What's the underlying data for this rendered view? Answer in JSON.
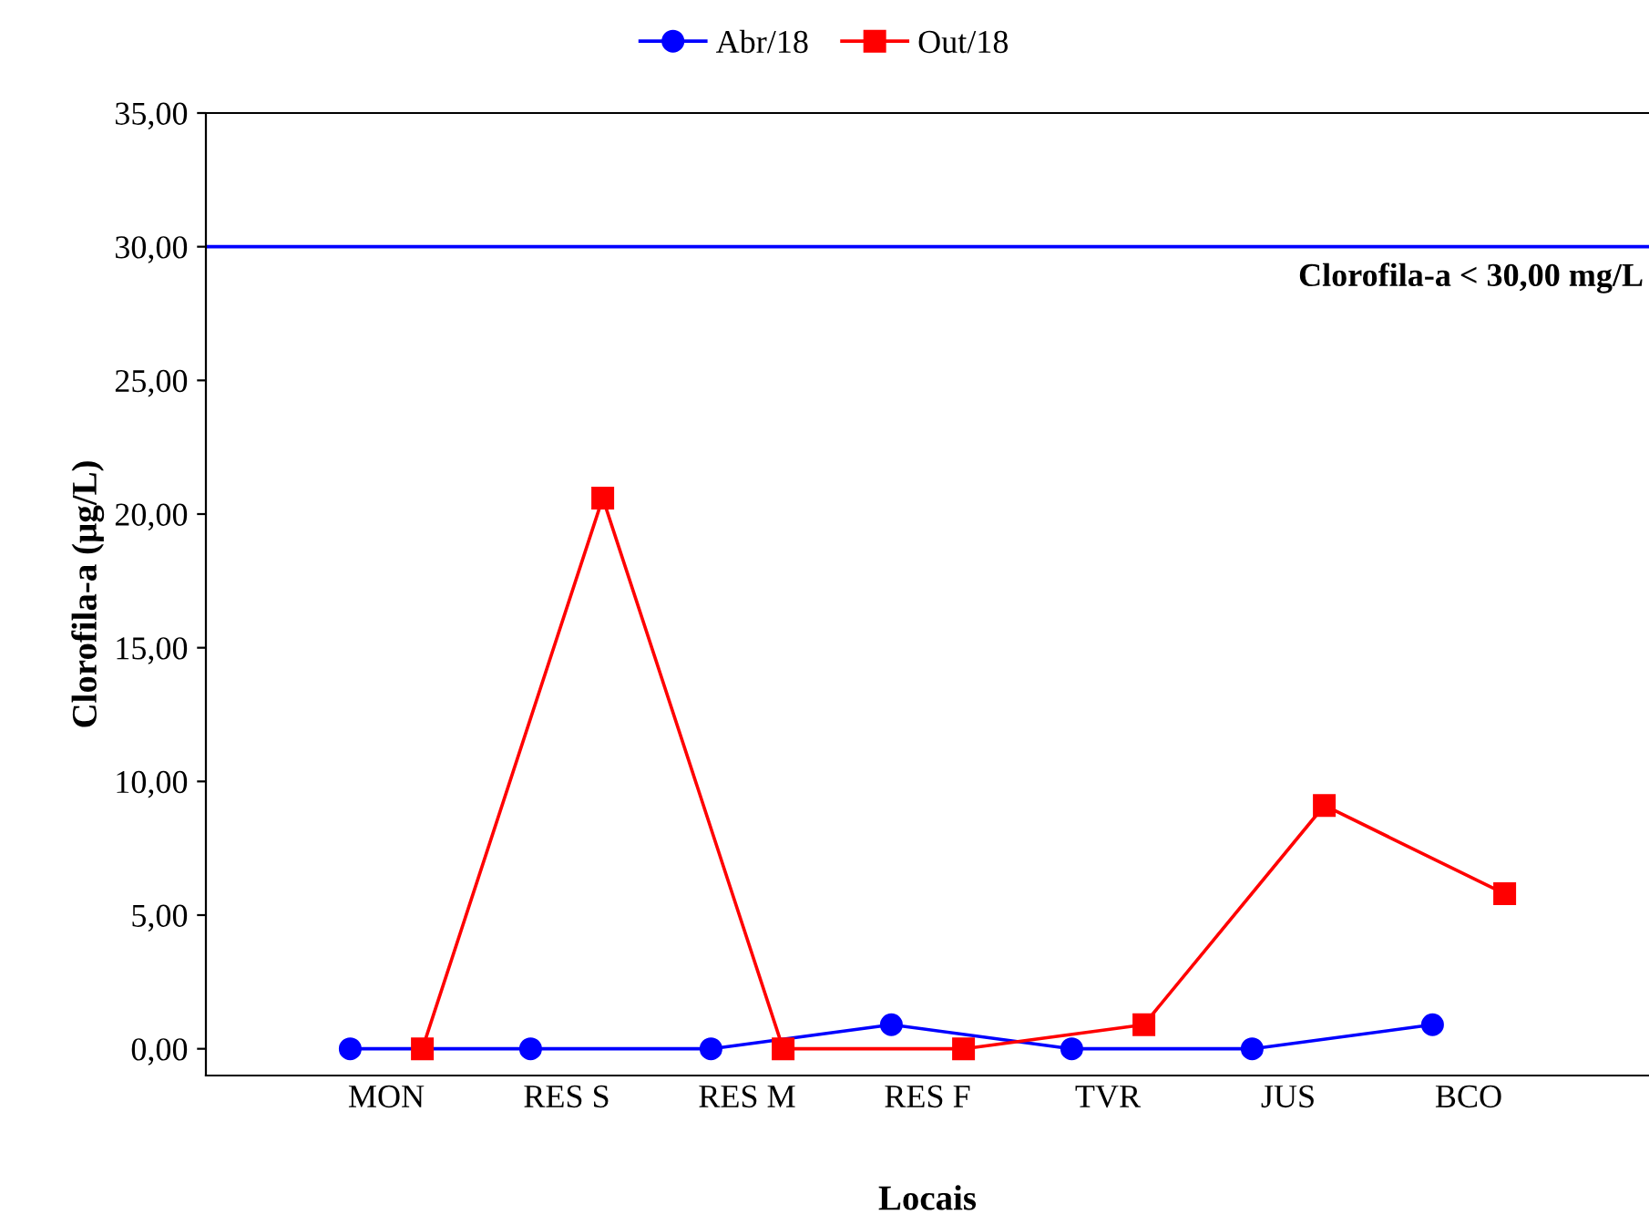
{
  "chart_data": {
    "type": "line",
    "categories": [
      "MON",
      "RES S",
      "RES M",
      "RES F",
      "TVR",
      "JUS",
      "BCO"
    ],
    "xlabel": "Locais",
    "ylabel": "Clorofila-a (µg/L)",
    "ylim": [
      -1,
      35
    ],
    "yticks": [
      {
        "value": 0,
        "label": "0,00"
      },
      {
        "value": 5,
        "label": "5,00"
      },
      {
        "value": 10,
        "label": "10,00"
      },
      {
        "value": 15,
        "label": "15,00"
      },
      {
        "value": 20,
        "label": "20,00"
      },
      {
        "value": 25,
        "label": "25,00"
      },
      {
        "value": 30,
        "label": "30,00"
      },
      {
        "value": 35,
        "label": "35,00"
      }
    ],
    "series": [
      {
        "name": "Abr/18",
        "color": "#0000ff",
        "marker": "circle",
        "values": [
          0,
          0,
          0,
          0.9,
          0,
          0,
          0.9
        ]
      },
      {
        "name": "Out/18",
        "color": "#ff0000",
        "marker": "square",
        "values": [
          0,
          20.6,
          0,
          0,
          0.9,
          9.1,
          5.8
        ]
      }
    ],
    "ref_lines": [
      {
        "axis": "y",
        "value": 30,
        "label": "Clorofila-a < 30,00 mg/L",
        "color": "#0000ff"
      }
    ],
    "legend": "top",
    "grid": false
  }
}
